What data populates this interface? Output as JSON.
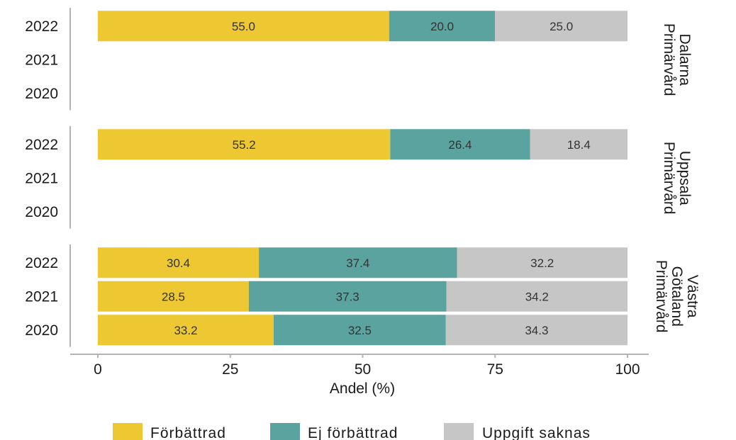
{
  "chart_data": {
    "type": "bar",
    "orientation": "horizontal",
    "stacked": true,
    "xlabel": "Andel (%)",
    "xlim": [
      0,
      100
    ],
    "xticks": [
      "0",
      "25",
      "50",
      "75",
      "100"
    ],
    "legend_position": "bottom",
    "series": [
      {
        "name": "Förbättrad",
        "color": "#EDC832"
      },
      {
        "name": "Ej förbättrad",
        "color": "#5BA39E"
      },
      {
        "name": "Uppgift saknas",
        "color": "#C6C6C6"
      }
    ],
    "panels": [
      {
        "strip": [
          "Dalarna",
          "Primärvård"
        ],
        "rows": [
          {
            "year": "2022",
            "values": [
              55.0,
              20.0,
              25.0
            ],
            "labels": [
              "55.0",
              "20.0",
              "25.0"
            ]
          },
          {
            "year": "2021",
            "values": null,
            "labels": null
          },
          {
            "year": "2020",
            "values": null,
            "labels": null
          }
        ]
      },
      {
        "strip": [
          "Uppsala",
          "Primärvård"
        ],
        "rows": [
          {
            "year": "2022",
            "values": [
              55.2,
              26.4,
              18.4
            ],
            "labels": [
              "55.2",
              "26.4",
              "18.4"
            ]
          },
          {
            "year": "2021",
            "values": null,
            "labels": null
          },
          {
            "year": "2020",
            "values": null,
            "labels": null
          }
        ]
      },
      {
        "strip": [
          "Västra",
          "Götaland",
          "Primärvård"
        ],
        "rows": [
          {
            "year": "2022",
            "values": [
              30.4,
              37.4,
              32.2
            ],
            "labels": [
              "30.4",
              "37.4",
              "32.2"
            ]
          },
          {
            "year": "2021",
            "values": [
              28.5,
              37.3,
              34.2
            ],
            "labels": [
              "28.5",
              "37.3",
              "34.2"
            ]
          },
          {
            "year": "2020",
            "values": [
              33.2,
              32.5,
              34.3
            ],
            "labels": [
              "33.2",
              "32.5",
              "34.3"
            ]
          }
        ]
      }
    ]
  }
}
